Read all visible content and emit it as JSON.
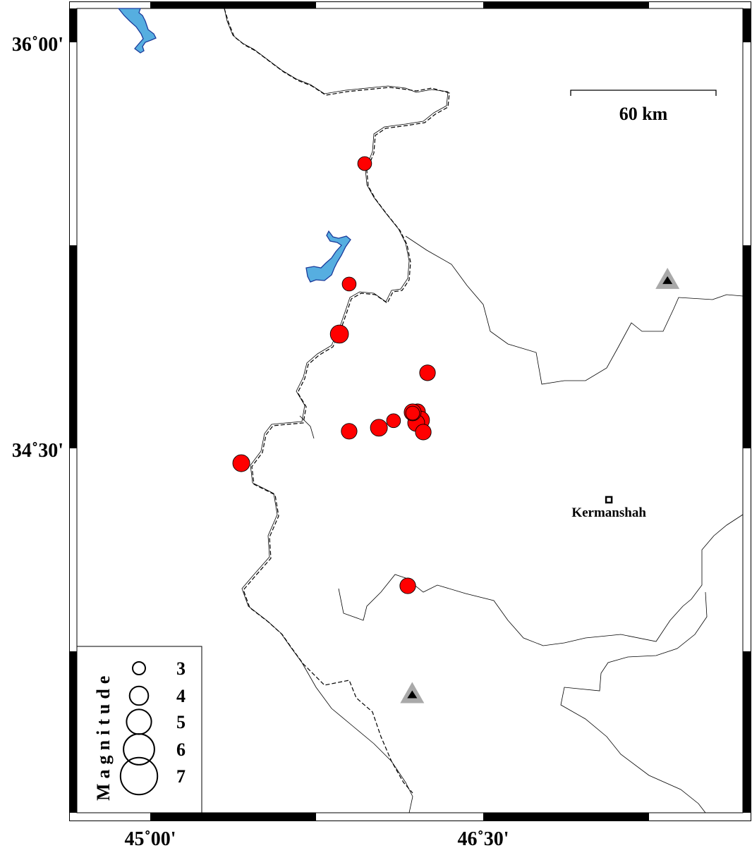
{
  "map": {
    "lon_range": [
      44.667,
      47.667
    ],
    "lat_range": [
      33.26,
      36.125
    ],
    "lon_ticks": [
      {
        "value": 45.0,
        "label": "45˚00'"
      },
      {
        "value": 46.5,
        "label": "46˚30'"
      }
    ],
    "lat_ticks": [
      {
        "value": 36.0,
        "label": "36˚00'"
      },
      {
        "value": 34.5,
        "label": "34˚30'"
      }
    ],
    "scale_bar": {
      "label": "60 km",
      "km": 60
    },
    "colors": {
      "event": "#ff0000",
      "water": "#56aee0",
      "water_edge": "#1a3a9a",
      "station": "#a9a9a9"
    }
  },
  "city": {
    "name": "Kermanshah",
    "lon": 47.066,
    "lat": 34.31
  },
  "stations": [
    {
      "lon": 47.33,
      "lat": 35.12
    },
    {
      "lon": 46.18,
      "lat": 33.59
    }
  ],
  "events": [
    {
      "lon": 45.966,
      "lat": 35.552,
      "mag": 3.2
    },
    {
      "lon": 45.896,
      "lat": 35.107,
      "mag": 3.2
    },
    {
      "lon": 45.852,
      "lat": 34.922,
      "mag": 3.9
    },
    {
      "lon": 46.249,
      "lat": 34.779,
      "mag": 3.5
    },
    {
      "lon": 45.41,
      "lat": 34.445,
      "mag": 3.7
    },
    {
      "lon": 45.896,
      "lat": 34.563,
      "mag": 3.5
    },
    {
      "lon": 46.03,
      "lat": 34.576,
      "mag": 3.7
    },
    {
      "lon": 46.096,
      "lat": 34.602,
      "mag": 3.2
    },
    {
      "lon": 46.204,
      "lat": 34.635,
      "mag": 3.5
    },
    {
      "lon": 46.217,
      "lat": 34.604,
      "mag": 3.9
    },
    {
      "lon": 46.198,
      "lat": 34.594,
      "mag": 3.7
    },
    {
      "lon": 46.23,
      "lat": 34.56,
      "mag": 3.5
    },
    {
      "lon": 46.182,
      "lat": 34.633,
      "mag": 3.7
    },
    {
      "lon": 46.182,
      "lat": 34.63,
      "mag": 3.2
    },
    {
      "lon": 46.16,
      "lat": 33.992,
      "mag": 3.5
    }
  ],
  "legend": {
    "title": "Magnitude",
    "items": [
      {
        "label": "3",
        "mag": 3
      },
      {
        "label": "4",
        "mag": 4
      },
      {
        "label": "5",
        "mag": 5
      },
      {
        "label": "6",
        "mag": 6
      },
      {
        "label": "7",
        "mag": 7
      }
    ]
  }
}
